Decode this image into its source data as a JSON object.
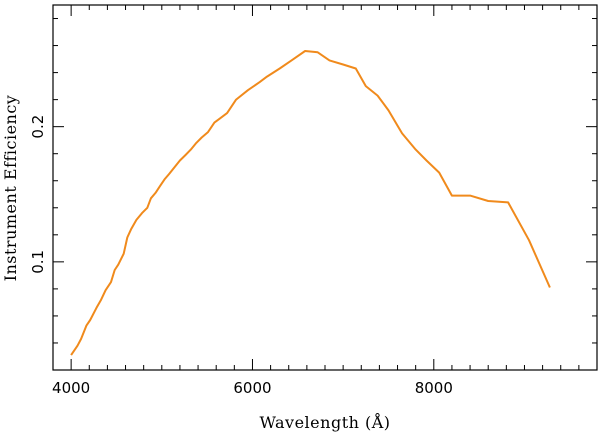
{
  "chart_data": {
    "type": "line",
    "title": "",
    "xlabel": "Wavelength (Å)",
    "ylabel": "Instrument Efficiency",
    "xlim": [
      3800,
      9800
    ],
    "ylim": [
      0.02,
      0.29
    ],
    "x_major_ticks": [
      4000,
      6000,
      8000
    ],
    "x_minor_step": 200,
    "y_major_ticks": [
      0.1,
      0.2
    ],
    "y_minor_step": 0.02,
    "x_tick_labels": [
      "4000",
      "6000",
      "8000"
    ],
    "y_tick_labels": [
      "0.1",
      "0.2"
    ],
    "grid": false,
    "legend": "none",
    "colors": {
      "line": "#f08a1c",
      "axis": "#000000",
      "background": "#ffffff"
    },
    "series": [
      {
        "x": [
          4000,
          4070,
          4110,
          4170,
          4210,
          4280,
          4330,
          4380,
          4440,
          4480,
          4520,
          4580,
          4620,
          4660,
          4720,
          4780,
          4840,
          4880,
          4930,
          4980,
          5030,
          5080,
          5140,
          5200,
          5260,
          5320,
          5380,
          5440,
          5510,
          5580,
          5640,
          5720,
          5820,
          5950,
          6080,
          6160,
          6300,
          6430,
          6580,
          6720,
          6850,
          7000,
          7140,
          7250,
          7380,
          7500,
          7650,
          7800,
          7920,
          8060,
          8200,
          8400,
          8600,
          8820,
          9050,
          9280
        ],
        "y": [
          0.031,
          0.038,
          0.043,
          0.053,
          0.057,
          0.066,
          0.072,
          0.079,
          0.085,
          0.094,
          0.098,
          0.106,
          0.118,
          0.124,
          0.131,
          0.136,
          0.14,
          0.147,
          0.151,
          0.156,
          0.161,
          0.165,
          0.17,
          0.175,
          0.179,
          0.183,
          0.188,
          0.192,
          0.196,
          0.203,
          0.206,
          0.21,
          0.22,
          0.227,
          0.233,
          0.237,
          0.243,
          0.249,
          0.256,
          0.255,
          0.249,
          0.246,
          0.243,
          0.23,
          0.223,
          0.212,
          0.195,
          0.183,
          0.175,
          0.166,
          0.149,
          0.149,
          0.145,
          0.144,
          0.116,
          0.081
        ]
      }
    ]
  }
}
